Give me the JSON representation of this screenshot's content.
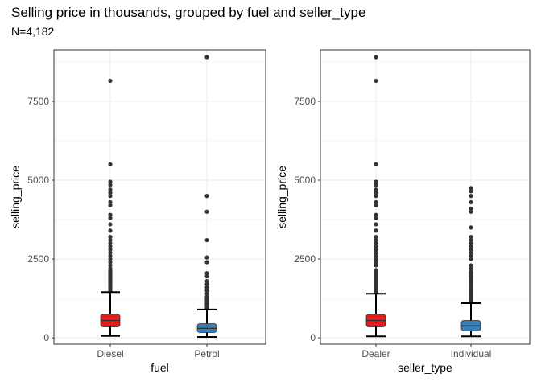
{
  "title": "Selling price in thousands, grouped by fuel and seller_type",
  "subtitle": "N=4,182",
  "chart_data": [
    {
      "type": "boxplot",
      "xlabel": "fuel",
      "ylabel": "selling_price",
      "ylim": [
        -200,
        9130
      ],
      "yticks": [
        0,
        2500,
        5000,
        7500
      ],
      "grid": true,
      "categories": [
        "Diesel",
        "Petrol"
      ],
      "colors": [
        "#e41a1c",
        "#377eb8"
      ],
      "boxes": [
        {
          "min": 60,
          "q1": 350,
          "median": 550,
          "q3": 750,
          "max": 1450,
          "outliers": [
            1500,
            1550,
            1600,
            1650,
            1700,
            1750,
            1800,
            1850,
            1900,
            1950,
            2000,
            2050,
            2100,
            2150,
            2200,
            2300,
            2400,
            2500,
            2600,
            2700,
            2800,
            2900,
            3000,
            3100,
            3200,
            3400,
            3600,
            3800,
            3900,
            4200,
            4300,
            4500,
            4600,
            4700,
            4850,
            4950,
            5500,
            8150
          ]
        },
        {
          "min": 30,
          "q1": 170,
          "median": 300,
          "q3": 450,
          "max": 900,
          "outliers": [
            950,
            1000,
            1050,
            1100,
            1150,
            1200,
            1250,
            1300,
            1400,
            1500,
            1600,
            1700,
            1800,
            1950,
            2050,
            2400,
            2550,
            3100,
            4000,
            4500,
            8900
          ]
        }
      ]
    },
    {
      "type": "boxplot",
      "xlabel": "seller_type",
      "ylabel": "selling_price",
      "ylim": [
        -200,
        9130
      ],
      "yticks": [
        0,
        2500,
        5000,
        7500
      ],
      "grid": true,
      "categories": [
        "Dealer",
        "Individual"
      ],
      "colors": [
        "#e41a1c",
        "#377eb8"
      ],
      "boxes": [
        {
          "min": 50,
          "q1": 350,
          "median": 550,
          "q3": 750,
          "max": 1400,
          "outliers": [
            1450,
            1500,
            1550,
            1600,
            1650,
            1700,
            1750,
            1800,
            1850,
            1900,
            1950,
            2000,
            2050,
            2100,
            2150,
            2300,
            2400,
            2500,
            2600,
            2700,
            2800,
            2900,
            3000,
            3100,
            3200,
            3400,
            3600,
            3800,
            3900,
            4200,
            4300,
            4500,
            4600,
            4700,
            4850,
            4950,
            5500,
            8150,
            8900
          ]
        },
        {
          "min": 50,
          "q1": 220,
          "median": 380,
          "q3": 550,
          "max": 1100,
          "outliers": [
            1150,
            1200,
            1250,
            1300,
            1350,
            1400,
            1450,
            1500,
            1550,
            1600,
            1650,
            1700,
            1750,
            1800,
            1850,
            1900,
            1950,
            2000,
            2050,
            2100,
            2200,
            2300,
            2500,
            2600,
            2700,
            2800,
            2900,
            3000,
            3100,
            3200,
            3500,
            4000,
            4100,
            4300,
            4500,
            4650,
            4750
          ]
        }
      ]
    }
  ]
}
